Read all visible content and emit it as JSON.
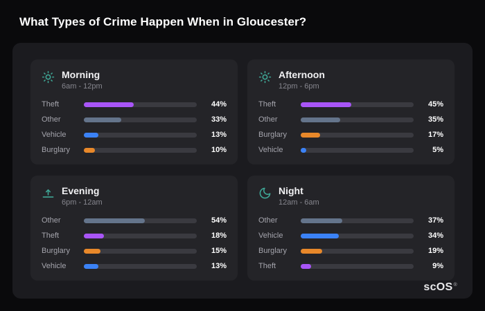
{
  "title": "What Types of Crime Happen When in Gloucester?",
  "brand": {
    "name": "scOS",
    "reg": "®"
  },
  "colors": {
    "Theft": "#a855f7",
    "Other": "#64748b",
    "Vehicle": "#3b82f6",
    "Burglary": "#e8882a",
    "icon_accent": "#3fa796",
    "track": "#3a3a40",
    "panel_bg": "#242428",
    "container_bg": "#1b1b1f",
    "page_bg": "#0a0a0c"
  },
  "chart_data": [
    {
      "type": "bar",
      "orientation": "horizontal",
      "title": "Morning",
      "subtitle": "6am - 12pm",
      "icon": "sun-icon",
      "categories": [
        "Theft",
        "Other",
        "Vehicle",
        "Burglary"
      ],
      "values": [
        44,
        33,
        13,
        10
      ],
      "labels": [
        "44%",
        "33%",
        "13%",
        "10%"
      ],
      "xlim": [
        0,
        100
      ]
    },
    {
      "type": "bar",
      "orientation": "horizontal",
      "title": "Afternoon",
      "subtitle": "12pm - 6pm",
      "icon": "sun-icon",
      "categories": [
        "Theft",
        "Other",
        "Burglary",
        "Vehicle"
      ],
      "values": [
        45,
        35,
        17,
        5
      ],
      "labels": [
        "45%",
        "35%",
        "17%",
        "5%"
      ],
      "xlim": [
        0,
        100
      ]
    },
    {
      "type": "bar",
      "orientation": "horizontal",
      "title": "Evening",
      "subtitle": "6pm - 12am",
      "icon": "sunrise-icon",
      "categories": [
        "Other",
        "Theft",
        "Burglary",
        "Vehicle"
      ],
      "values": [
        54,
        18,
        15,
        13
      ],
      "labels": [
        "54%",
        "18%",
        "15%",
        "13%"
      ],
      "xlim": [
        0,
        100
      ]
    },
    {
      "type": "bar",
      "orientation": "horizontal",
      "title": "Night",
      "subtitle": "12am - 6am",
      "icon": "moon-icon",
      "categories": [
        "Other",
        "Vehicle",
        "Burglary",
        "Theft"
      ],
      "values": [
        37,
        34,
        19,
        9
      ],
      "labels": [
        "37%",
        "34%",
        "19%",
        "9%"
      ],
      "xlim": [
        0,
        100
      ]
    }
  ]
}
